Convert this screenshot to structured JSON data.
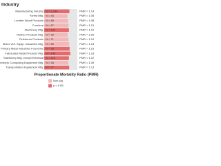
{
  "chart_data": {
    "type": "bar",
    "title": "Industry",
    "x_label": "Proportionate Mortality Ratio (PMR)",
    "categories": [
      "Manufacturing Industry",
      "Forest Mfg.",
      "Lumber Wood Products",
      "Furniture",
      "Machinery Mfg.",
      "Rubber Products Mfg.",
      "Petroleum Products",
      "Motor Veh. Equip. Industries Mfg.",
      "Primary Metal Industries Foundries",
      "Fabricated Metal Products Mfg.",
      "Machinery Mfg. except Electrical",
      "Electronic Computing Equipment Mfg.",
      "Transportation Equipment Mfg."
    ],
    "values": [
      1.14,
      1.05,
      1.08,
      1.1,
      1.12,
      1.06,
      1.1,
      1.13,
      1.15,
      1.18,
      1.12,
      1.09,
      1.13
    ],
    "value_labels": [
      "PMR = 1.14",
      "PMR = 1.05",
      "PMR = 1.08",
      "PMR = 1.10",
      "PMR = 1.12",
      "PMR = 1.06",
      "PMR = 1.10",
      "PMR = 1.13",
      "PMR = 1.15",
      "PMR = 1.18",
      "PMR = 1.12",
      "PMR = 1.09",
      "PMR = 1.13"
    ],
    "count_labels": [
      "N = 1,234",
      "N = 45",
      "N = 88",
      "N = 67",
      "N = 102",
      "N = 39",
      "N = 71",
      "N = 56",
      "N = 93",
      "N = 145",
      "N = 120",
      "N = 48",
      "N = 77"
    ],
    "colors": [
      "#e8696b",
      "#f4b6b6",
      "#f4b6b6",
      "#f4b6b6",
      "#e8696b",
      "#f4b6b6",
      "#f4b6b6",
      "#f4b6b6",
      "#e8696b",
      "#e8696b",
      "#e8696b",
      "#f4b6b6",
      "#e8696b"
    ],
    "xlim": [
      0,
      1.5
    ],
    "legend": [
      {
        "name": "Non-sig",
        "color": "#f4b6b6"
      },
      {
        "name": "p < 0.05",
        "color": "#e8696b"
      }
    ]
  }
}
